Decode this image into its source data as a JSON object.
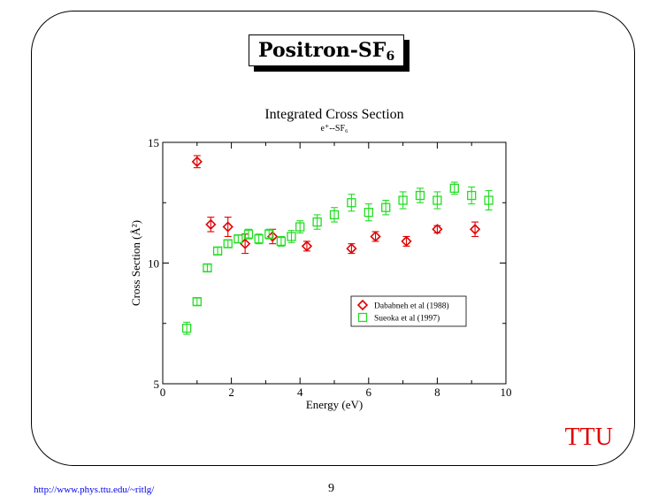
{
  "slide": {
    "title_main": "Positron-SF",
    "title_sub": "6",
    "brand": "TTU",
    "footer_url": "http://www.phys.ttu.edu/~ritlg/",
    "page_number": "9"
  },
  "colors": {
    "dababneh": "#e00000",
    "sueoka": "#22dd22",
    "brand": "#e00000",
    "link": "#0000ee"
  },
  "chart_data": {
    "type": "scatter",
    "title": "Integrated Cross Section",
    "subtitle": "e⁺--SF₆",
    "xlabel": "Energy (eV)",
    "ylabel": "Cross Section (Å²)",
    "xlim": [
      0,
      10
    ],
    "ylim": [
      5,
      15
    ],
    "xticks": [
      0,
      2,
      4,
      6,
      8,
      10
    ],
    "yticks": [
      5,
      10,
      15
    ],
    "grid": false,
    "legend_position": "center-right",
    "series": [
      {
        "name": "Dababneh et al (1988)",
        "marker": "diamond",
        "color": "#e00000",
        "points": [
          {
            "x": 1.0,
            "y": 14.2,
            "err": 0.25
          },
          {
            "x": 1.4,
            "y": 11.6,
            "err": 0.3
          },
          {
            "x": 1.9,
            "y": 11.5,
            "err": 0.4
          },
          {
            "x": 2.4,
            "y": 10.8,
            "err": 0.4
          },
          {
            "x": 3.2,
            "y": 11.1,
            "err": 0.3
          },
          {
            "x": 4.2,
            "y": 10.7,
            "err": 0.2
          },
          {
            "x": 5.5,
            "y": 10.6,
            "err": 0.2
          },
          {
            "x": 6.2,
            "y": 11.1,
            "err": 0.2
          },
          {
            "x": 7.1,
            "y": 10.9,
            "err": 0.2
          },
          {
            "x": 8.0,
            "y": 11.4,
            "err": 0.15
          },
          {
            "x": 9.1,
            "y": 11.4,
            "err": 0.3
          }
        ]
      },
      {
        "name": "Sueoka et al (1997)",
        "marker": "square",
        "color": "#22dd22",
        "points": [
          {
            "x": 0.7,
            "y": 7.3,
            "err": 0.25
          },
          {
            "x": 1.0,
            "y": 8.4,
            "err": 0.15
          },
          {
            "x": 1.3,
            "y": 9.8,
            "err": 0.15
          },
          {
            "x": 1.6,
            "y": 10.5,
            "err": 0.15
          },
          {
            "x": 1.9,
            "y": 10.8,
            "err": 0.15
          },
          {
            "x": 2.2,
            "y": 11.0,
            "err": 0.15
          },
          {
            "x": 2.5,
            "y": 11.2,
            "err": 0.2
          },
          {
            "x": 2.8,
            "y": 11.0,
            "err": 0.2
          },
          {
            "x": 3.1,
            "y": 11.2,
            "err": 0.2
          },
          {
            "x": 3.45,
            "y": 10.9,
            "err": 0.2
          },
          {
            "x": 3.75,
            "y": 11.1,
            "err": 0.25
          },
          {
            "x": 4.0,
            "y": 11.5,
            "err": 0.25
          },
          {
            "x": 4.5,
            "y": 11.7,
            "err": 0.3
          },
          {
            "x": 5.0,
            "y": 12.0,
            "err": 0.3
          },
          {
            "x": 5.5,
            "y": 12.5,
            "err": 0.35
          },
          {
            "x": 6.0,
            "y": 12.1,
            "err": 0.35
          },
          {
            "x": 6.5,
            "y": 12.3,
            "err": 0.3
          },
          {
            "x": 7.0,
            "y": 12.6,
            "err": 0.35
          },
          {
            "x": 7.5,
            "y": 12.8,
            "err": 0.3
          },
          {
            "x": 8.0,
            "y": 12.6,
            "err": 0.35
          },
          {
            "x": 8.5,
            "y": 13.1,
            "err": 0.25
          },
          {
            "x": 9.0,
            "y": 12.8,
            "err": 0.35
          },
          {
            "x": 9.5,
            "y": 12.6,
            "err": 0.4
          }
        ]
      }
    ]
  }
}
